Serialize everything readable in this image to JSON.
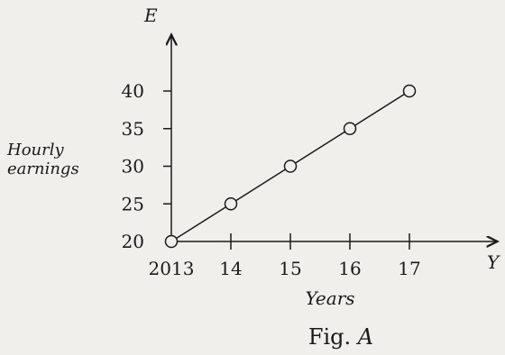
{
  "figure": {
    "caption_text": "Fig. ",
    "caption_letter": "A"
  },
  "chart_data": {
    "type": "line",
    "x_axis_symbol": "Y",
    "y_axis_symbol": "E",
    "xlabel": "Years",
    "ylabel_lines": [
      "Hourly",
      "earnings"
    ],
    "x_tick_labels": [
      "2013",
      "14",
      "15",
      "16",
      "17"
    ],
    "x": [
      2013,
      2014,
      2015,
      2016,
      2017
    ],
    "y_ticks": [
      20,
      25,
      30,
      35,
      40
    ],
    "series": [
      {
        "values": [
          20,
          25,
          30,
          35,
          40
        ],
        "marker": "hollow-circle"
      }
    ],
    "xlim": [
      2013,
      2017
    ],
    "ylim": [
      20,
      40
    ],
    "grid": false,
    "colors": {
      "ink": "#1a1a1a",
      "background": "#f1efec"
    }
  }
}
